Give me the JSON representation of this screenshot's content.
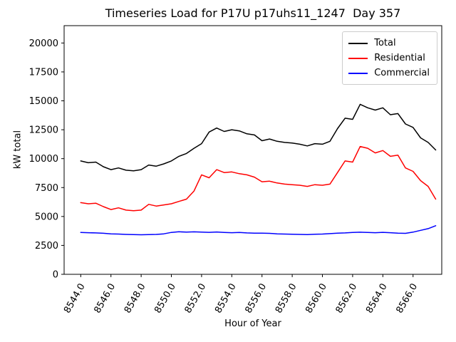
{
  "chart_data": {
    "type": "line",
    "title": "Timeseries Load for P17U p17uhs11_1247  Day 357",
    "xlabel": "Hour of Year",
    "ylabel": "kW total",
    "xlim": [
      8542.9,
      8567.9
    ],
    "ylim": [
      0,
      21500
    ],
    "grid": false,
    "legend_position": "upper right",
    "xticks": [
      8544,
      8546,
      8548,
      8550,
      8552,
      8554,
      8556,
      8558,
      8560,
      8562,
      8564,
      8566
    ],
    "xtick_labels": [
      "8544.0",
      "8546.0",
      "8548.0",
      "8550.0",
      "8552.0",
      "8554.0",
      "8556.0",
      "8558.0",
      "8560.0",
      "8562.0",
      "8564.0",
      "8566.0"
    ],
    "yticks": [
      0,
      2500,
      5000,
      7500,
      10000,
      12500,
      15000,
      17500,
      20000
    ],
    "ytick_labels": [
      "0",
      "2500",
      "5000",
      "7500",
      "10000",
      "12500",
      "15000",
      "17500",
      "20000"
    ],
    "x": [
      8544.0,
      8544.5,
      8545.0,
      8545.5,
      8546.0,
      8546.5,
      8547.0,
      8547.5,
      8548.0,
      8548.5,
      8549.0,
      8549.5,
      8550.0,
      8550.5,
      8551.0,
      8551.5,
      8552.0,
      8552.5,
      8553.0,
      8553.5,
      8554.0,
      8554.5,
      8555.0,
      8555.5,
      8556.0,
      8556.5,
      8557.0,
      8557.5,
      8558.0,
      8558.5,
      8559.0,
      8559.5,
      8560.0,
      8560.5,
      8561.0,
      8561.5,
      8562.0,
      8562.5,
      8563.0,
      8563.5,
      8564.0,
      8564.5,
      8565.0,
      8565.5,
      8566.0,
      8566.5,
      8567.0,
      8567.5
    ],
    "series": [
      {
        "name": "Total",
        "color": "#000000",
        "values": [
          9800,
          9650,
          9700,
          9300,
          9050,
          9200,
          9000,
          8950,
          9050,
          9450,
          9350,
          9550,
          9800,
          10200,
          10450,
          10900,
          11300,
          12300,
          12650,
          12350,
          12500,
          12400,
          12150,
          12050,
          11550,
          11700,
          11500,
          11400,
          11350,
          11250,
          11100,
          11300,
          11250,
          11500,
          12600,
          13500,
          13400,
          14700,
          14400,
          14200,
          14400,
          13800,
          13900,
          13000,
          12700,
          11800,
          11400,
          10750
        ]
      },
      {
        "name": "Residential",
        "color": "#ff0000",
        "values": [
          6200,
          6100,
          6150,
          5850,
          5600,
          5750,
          5550,
          5500,
          5550,
          6050,
          5900,
          6000,
          6100,
          6300,
          6500,
          7200,
          8600,
          8350,
          9050,
          8800,
          8850,
          8700,
          8600,
          8400,
          8000,
          8050,
          7900,
          7800,
          7750,
          7700,
          7600,
          7750,
          7700,
          7800,
          8800,
          9800,
          9700,
          11050,
          10900,
          10500,
          10700,
          10200,
          10300,
          9200,
          8900,
          8100,
          7600,
          6500
        ]
      },
      {
        "name": "Commercial",
        "color": "#0000ff",
        "values": [
          3620,
          3600,
          3580,
          3550,
          3500,
          3480,
          3450,
          3430,
          3420,
          3430,
          3450,
          3500,
          3620,
          3680,
          3650,
          3670,
          3650,
          3630,
          3660,
          3620,
          3600,
          3620,
          3580,
          3560,
          3560,
          3540,
          3500,
          3480,
          3470,
          3450,
          3440,
          3460,
          3480,
          3520,
          3560,
          3580,
          3620,
          3640,
          3620,
          3600,
          3630,
          3600,
          3560,
          3540,
          3650,
          3800,
          3950,
          4200
        ]
      }
    ]
  }
}
